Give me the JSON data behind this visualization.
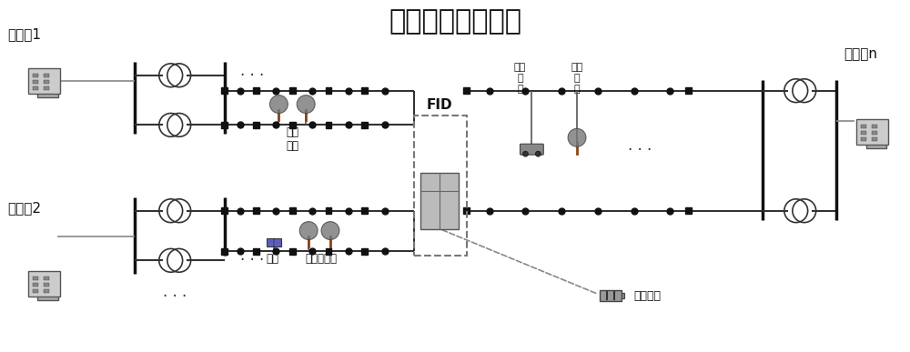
{
  "title": "交流微网柔性互联",
  "title_fontsize": 22,
  "bg_color": "#ffffff",
  "label_变电站1": "变电站1",
  "label_变电站2": "变电站2",
  "label_变电站n": "变电站n",
  "label_敏感负荷": "敏感\n负荷",
  "label_光伏": "光伏",
  "label_电动机负荷": "电动机负荷",
  "label_FID": "FID",
  "label_电动汽车": "电动\n汽\n车",
  "label_关键负荷": "关键\n负\n荷",
  "label_储能装置": "储能装置",
  "label_dots": "· · ·",
  "line_color": "#333333",
  "bus_color": "#111111",
  "dot_color": "#111111",
  "dashed_color": "#555555"
}
